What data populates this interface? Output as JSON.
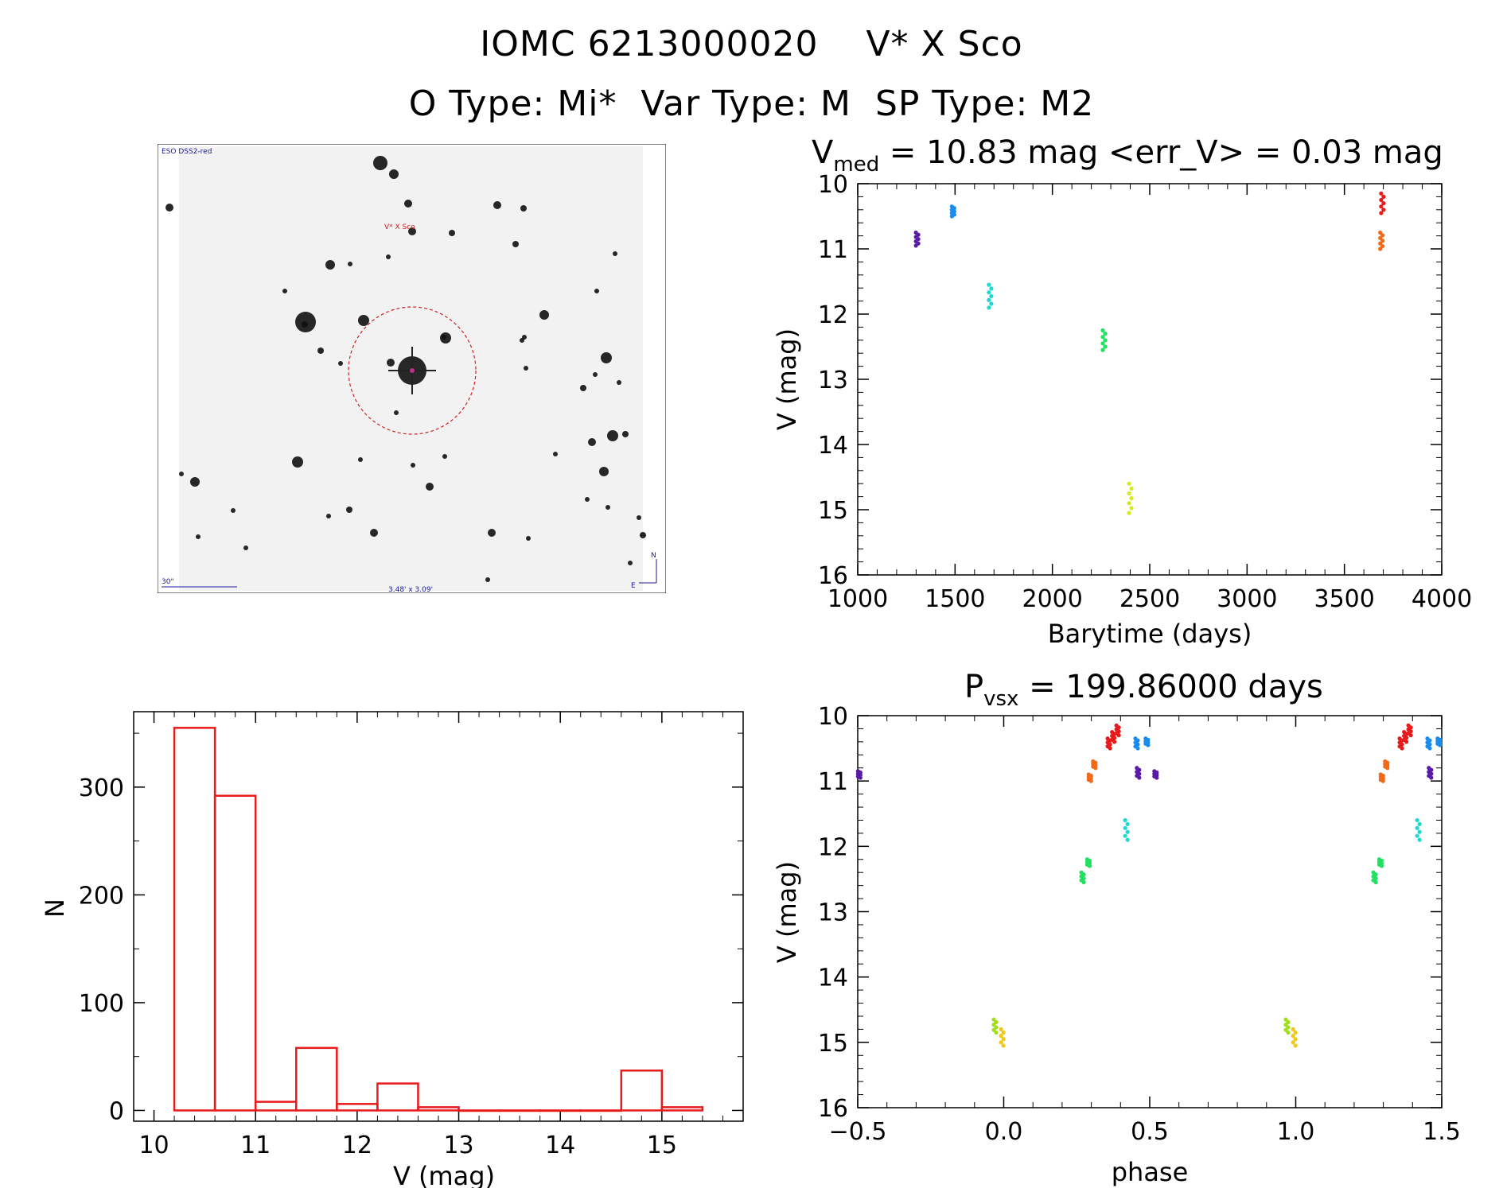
{
  "header": {
    "title_line1": "IOMC 6213000020    V* X Sco",
    "title_line2": "O Type: Mi*  Var Type: M  SP Type: M2"
  },
  "sky_image": {
    "survey_label": "ESO DSS2-red",
    "target_label": "V* X Sco",
    "scale_label": "30\"",
    "fov_label": "3.48' x 3.09'",
    "north_label": "N",
    "east_label": "E"
  },
  "chart_data": [
    {
      "id": "lightcurve",
      "type": "scatter",
      "title_main": "V",
      "title_sub": "med",
      "title_rest": " = 10.83 mag <err_V> = 0.03 mag",
      "xlabel": "Barytime (days)",
      "ylabel": "V (mag)",
      "xlim": [
        1000,
        4000
      ],
      "ylim": [
        16,
        10
      ],
      "y_inverted": true,
      "xticks": [
        1000,
        1500,
        2000,
        2500,
        3000,
        3500,
        4000
      ],
      "yticks": [
        10,
        11,
        12,
        13,
        14,
        15,
        16
      ],
      "groups": [
        {
          "t": 1305,
          "v": [
            10.75,
            10.95
          ],
          "color": "#5a1aa8"
        },
        {
          "t": 1490,
          "v": [
            10.35,
            10.5
          ],
          "color": "#1a8cf0"
        },
        {
          "t": 1680,
          "v": [
            11.55,
            11.9
          ],
          "color": "#20d8d0"
        },
        {
          "t": 2265,
          "v": [
            12.25,
            12.55
          ],
          "color": "#22e060"
        },
        {
          "t": 2400,
          "v": [
            14.6,
            15.05
          ],
          "color": "#d8e81a"
        },
        {
          "t": 3695,
          "v": [
            10.15,
            10.45
          ],
          "color": "#e81a1a"
        },
        {
          "t": 3690,
          "v": [
            10.75,
            11.0
          ],
          "color": "#f06a1a"
        }
      ]
    },
    {
      "id": "histogram",
      "type": "bar",
      "xlabel": "V (mag)",
      "ylabel": "N",
      "xlim": [
        9.8,
        15.8
      ],
      "ylim": [
        -10,
        370
      ],
      "xticks": [
        10,
        11,
        12,
        13,
        14,
        15
      ],
      "yticks": [
        0,
        100,
        200,
        300
      ],
      "bin_edges": [
        10.2,
        10.6,
        11.0,
        11.4,
        11.8,
        12.2,
        12.6,
        13.0,
        13.4,
        13.8,
        14.2,
        14.6,
        15.0,
        15.4
      ],
      "counts": [
        355,
        292,
        8,
        58,
        6,
        25,
        3,
        0,
        0,
        0,
        0,
        37,
        3
      ],
      "color": "#e81a1a"
    },
    {
      "id": "phased",
      "type": "scatter",
      "title_main": "P",
      "title_sub": "vsx",
      "title_rest": " = 199.86000 days",
      "xlabel": "phase",
      "ylabel": "V (mag)",
      "xlim": [
        -0.5,
        1.5
      ],
      "ylim": [
        16,
        10
      ],
      "y_inverted": true,
      "xticks": [
        "−0.5",
        "0.0",
        "0.5",
        "1.0",
        "1.5"
      ],
      "xtick_values": [
        -0.5,
        0.0,
        0.5,
        1.0,
        1.5
      ],
      "yticks": [
        10,
        11,
        12,
        13,
        14,
        15,
        16
      ],
      "groups": [
        {
          "p": -0.495,
          "v": [
            10.85,
            10.95
          ],
          "color": "#5a1aa8"
        },
        {
          "p": -0.03,
          "v": [
            14.65,
            14.85
          ],
          "color": "#a0e01a"
        },
        {
          "p": -0.005,
          "v": [
            14.8,
            15.05
          ],
          "color": "#f0c81a"
        },
        {
          "p": 0.27,
          "v": [
            12.4,
            12.55
          ],
          "color": "#22e060"
        },
        {
          "p": 0.29,
          "v": [
            12.2,
            12.3
          ],
          "color": "#22e060"
        },
        {
          "p": 0.295,
          "v": [
            10.9,
            11.0
          ],
          "color": "#f06a1a"
        },
        {
          "p": 0.31,
          "v": [
            10.7,
            10.8
          ],
          "color": "#f06a1a"
        },
        {
          "p": 0.36,
          "v": [
            10.35,
            10.5
          ],
          "color": "#e81a1a"
        },
        {
          "p": 0.375,
          "v": [
            10.25,
            10.4
          ],
          "color": "#e81a1a"
        },
        {
          "p": 0.39,
          "v": [
            10.15,
            10.3
          ],
          "color": "#e81a1a"
        },
        {
          "p": 0.42,
          "v": [
            11.6,
            11.9
          ],
          "color": "#20d8d0"
        },
        {
          "p": 0.455,
          "v": [
            10.35,
            10.5
          ],
          "color": "#1a8cf0"
        },
        {
          "p": 0.46,
          "v": [
            10.8,
            10.95
          ],
          "color": "#5a1aa8"
        },
        {
          "p": 0.49,
          "v": [
            10.35,
            10.45
          ],
          "color": "#1a8cf0"
        },
        {
          "p": 0.52,
          "v": [
            10.85,
            10.95
          ],
          "color": "#5a1aa8"
        },
        {
          "p": 0.97,
          "v": [
            14.65,
            14.85
          ],
          "color": "#a0e01a"
        },
        {
          "p": 0.995,
          "v": [
            14.8,
            15.05
          ],
          "color": "#f0c81a"
        },
        {
          "p": 1.27,
          "v": [
            12.4,
            12.55
          ],
          "color": "#22e060"
        },
        {
          "p": 1.29,
          "v": [
            12.2,
            12.3
          ],
          "color": "#22e060"
        },
        {
          "p": 1.295,
          "v": [
            10.9,
            11.0
          ],
          "color": "#f06a1a"
        },
        {
          "p": 1.31,
          "v": [
            10.7,
            10.8
          ],
          "color": "#f06a1a"
        },
        {
          "p": 1.36,
          "v": [
            10.35,
            10.5
          ],
          "color": "#e81a1a"
        },
        {
          "p": 1.375,
          "v": [
            10.25,
            10.4
          ],
          "color": "#e81a1a"
        },
        {
          "p": 1.39,
          "v": [
            10.15,
            10.3
          ],
          "color": "#e81a1a"
        },
        {
          "p": 1.42,
          "v": [
            11.6,
            11.9
          ],
          "color": "#20d8d0"
        },
        {
          "p": 1.455,
          "v": [
            10.35,
            10.5
          ],
          "color": "#1a8cf0"
        },
        {
          "p": 1.46,
          "v": [
            10.8,
            10.95
          ],
          "color": "#5a1aa8"
        },
        {
          "p": 1.49,
          "v": [
            10.35,
            10.45
          ],
          "color": "#1a8cf0"
        }
      ]
    }
  ]
}
